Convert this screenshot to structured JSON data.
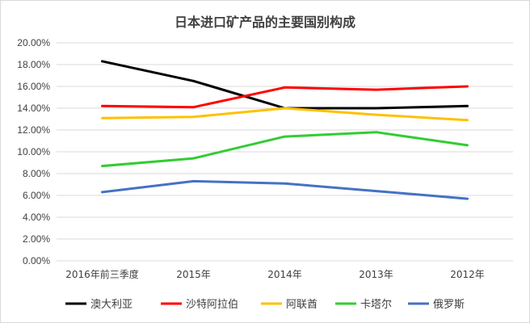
{
  "chart_data": {
    "type": "line",
    "title": "日本进口矿产品的主要国别构成",
    "categories": [
      "2016年前三季度",
      "2015年",
      "2014年",
      "2013年",
      "2012年"
    ],
    "ylim": [
      0,
      20
    ],
    "ytick_step": 2,
    "ytick_labels": [
      "0.00%",
      "2.00%",
      "4.00%",
      "6.00%",
      "8.00%",
      "10.00%",
      "12.00%",
      "14.00%",
      "16.00%",
      "18.00%",
      "20.00%"
    ],
    "grid": true,
    "legend_position": "bottom",
    "series": [
      {
        "name": "澳大利亚",
        "color": "#000000",
        "values": [
          18.3,
          16.5,
          14.0,
          14.0,
          14.2
        ]
      },
      {
        "name": "沙特阿拉伯",
        "color": "#ff0000",
        "values": [
          14.2,
          14.1,
          15.9,
          15.7,
          16.0
        ]
      },
      {
        "name": "阿联酋",
        "color": "#ffc000",
        "values": [
          13.1,
          13.2,
          14.0,
          13.4,
          12.9
        ]
      },
      {
        "name": "卡塔尔",
        "color": "#33cc33",
        "values": [
          8.7,
          9.4,
          11.4,
          11.8,
          10.6
        ]
      },
      {
        "name": "俄罗斯",
        "color": "#4472c4",
        "values": [
          6.3,
          7.3,
          7.1,
          6.4,
          5.7
        ]
      }
    ]
  }
}
